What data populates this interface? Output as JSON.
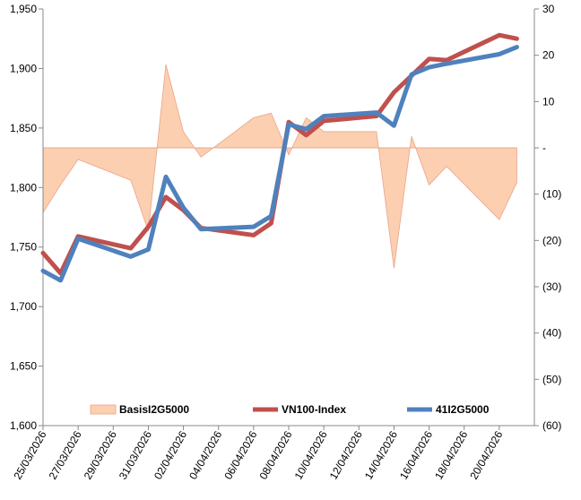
{
  "chart_data": {
    "type": "line",
    "title": "",
    "categories": [
      "25/03/2026",
      "26/03/2026",
      "27/03/2026",
      "30/03/2026",
      "31/03/2026",
      "01/04/2026",
      "02/04/2026",
      "03/04/2026",
      "06/04/2026",
      "07/04/2026",
      "08/04/2026",
      "09/04/2026",
      "10/04/2026",
      "13/04/2026",
      "14/04/2026",
      "15/04/2026",
      "16/04/2026",
      "17/04/2026",
      "20/04/2026",
      "21/04/2026"
    ],
    "x_tick_labels": [
      "25/03/2026",
      "27/03/2026",
      "29/03/2026",
      "31/03/2026",
      "02/04/2026",
      "04/04/2026",
      "06/04/2026",
      "08/04/2026",
      "10/04/2026",
      "12/04/2026",
      "14/04/2026",
      "16/04/2026",
      "18/04/2026",
      "20/04/2026"
    ],
    "x_range": [
      "25/03/2026",
      "22/04/2026"
    ],
    "y_left": {
      "min": 1600,
      "max": 1950,
      "step": 50,
      "tick_labels": [
        "1,600",
        "1,650",
        "1,700",
        "1,750",
        "1,800",
        "1,850",
        "1,900",
        "1,950"
      ]
    },
    "y_right": {
      "min": -60,
      "max": 30,
      "step": 10,
      "tick_labels": [
        "(60)",
        "(50)",
        "(40)",
        "(30)",
        "(20)",
        "(10)",
        "-",
        "10",
        "20",
        "30"
      ]
    },
    "series": [
      {
        "name": "BasisI2G5000",
        "kind": "area",
        "axis": "right",
        "color": "#fbcfb0",
        "stroke": "#e9a48a",
        "points": [
          [
            "25/03/2026",
            -14
          ],
          [
            "26/03/2026",
            -8
          ],
          [
            "27/03/2026",
            -2.5
          ],
          [
            "30/03/2026",
            -7
          ],
          [
            "31/03/2026",
            -18
          ],
          [
            "01/04/2026",
            18
          ],
          [
            "02/04/2026",
            3.5
          ],
          [
            "03/04/2026",
            -2
          ],
          [
            "06/04/2026",
            6.5
          ],
          [
            "07/04/2026",
            7.5
          ],
          [
            "08/04/2026",
            -1.5
          ],
          [
            "09/04/2026",
            6.5
          ],
          [
            "10/04/2026",
            3.5
          ],
          [
            "13/04/2026",
            3.5
          ],
          [
            "14/04/2026",
            -26
          ],
          [
            "15/04/2026",
            2.5
          ],
          [
            "16/04/2026",
            -8
          ],
          [
            "17/04/2026",
            -4
          ],
          [
            "20/04/2026",
            -15.5
          ],
          [
            "21/04/2026",
            -7.5
          ]
        ]
      },
      {
        "name": "VN100-Index",
        "kind": "line",
        "axis": "left",
        "color": "#c0504d",
        "points": [
          [
            "25/03/2026",
            1745
          ],
          [
            "26/03/2026",
            1728
          ],
          [
            "27/03/2026",
            1759
          ],
          [
            "30/03/2026",
            1749
          ],
          [
            "31/03/2026",
            1767
          ],
          [
            "01/04/2026",
            1792
          ],
          [
            "02/04/2026",
            1781
          ],
          [
            "03/04/2026",
            1766
          ],
          [
            "06/04/2026",
            1760
          ],
          [
            "07/04/2026",
            1770
          ],
          [
            "08/04/2026",
            1855
          ],
          [
            "09/04/2026",
            1844
          ],
          [
            "10/04/2026",
            1856
          ],
          [
            "13/04/2026",
            1860
          ],
          [
            "14/04/2026",
            1880
          ],
          [
            "15/04/2026",
            1894
          ],
          [
            "16/04/2026",
            1908
          ],
          [
            "17/04/2026",
            1907
          ],
          [
            "20/04/2026",
            1928
          ],
          [
            "21/04/2026",
            1925
          ]
        ]
      },
      {
        "name": "41I2G5000",
        "kind": "line",
        "axis": "left",
        "color": "#4f81bd",
        "points": [
          [
            "25/03/2026",
            1730
          ],
          [
            "26/03/2026",
            1722
          ],
          [
            "27/03/2026",
            1757
          ],
          [
            "30/03/2026",
            1742
          ],
          [
            "31/03/2026",
            1748
          ],
          [
            "01/04/2026",
            1809
          ],
          [
            "02/04/2026",
            1783
          ],
          [
            "03/04/2026",
            1765
          ],
          [
            "06/04/2026",
            1767
          ],
          [
            "07/04/2026",
            1776
          ],
          [
            "08/04/2026",
            1853
          ],
          [
            "09/04/2026",
            1849
          ],
          [
            "10/04/2026",
            1860
          ],
          [
            "13/04/2026",
            1863
          ],
          [
            "14/04/2026",
            1852
          ],
          [
            "15/04/2026",
            1895
          ],
          [
            "16/04/2026",
            1901
          ],
          [
            "17/04/2026",
            1904
          ],
          [
            "20/04/2026",
            1912
          ],
          [
            "21/04/2026",
            1918
          ]
        ]
      }
    ],
    "legend": {
      "position": "bottom-inside",
      "entries": [
        "BasisI2G5000",
        "VN100-Index",
        "41I2G5000"
      ]
    },
    "grid": false
  }
}
